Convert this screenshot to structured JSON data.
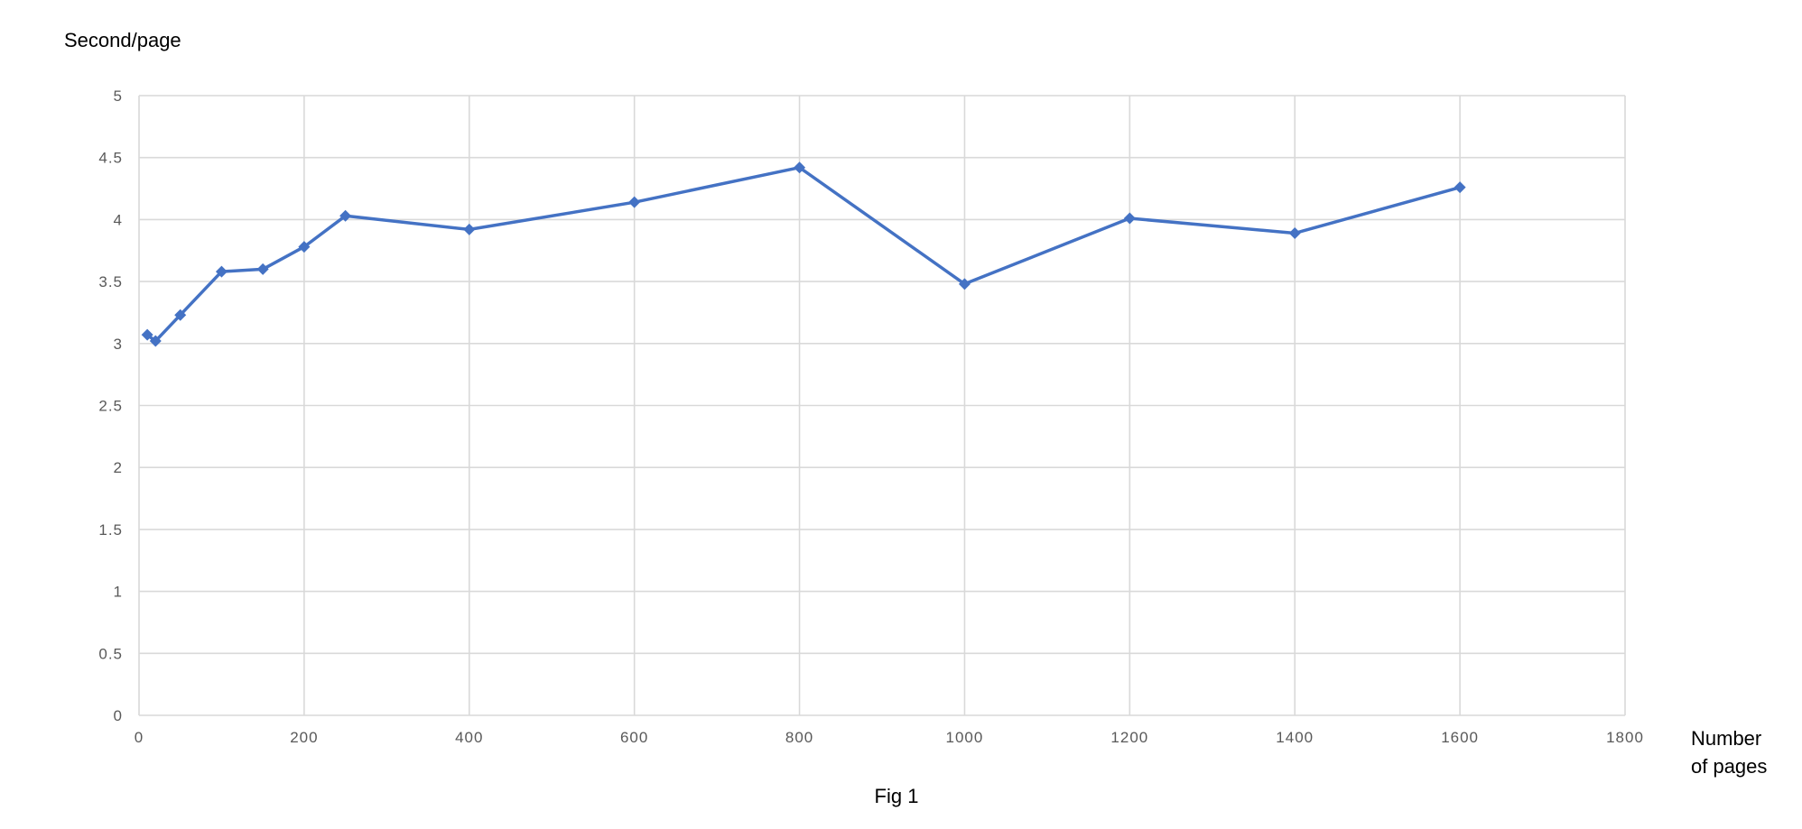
{
  "figure": {
    "caption": "Fig 1"
  },
  "colors": {
    "series": "#4472c4",
    "grid": "#d9d9d9",
    "tick_text": "#595959"
  },
  "chart_data": {
    "type": "line",
    "title": "",
    "ylabel": "Second/page",
    "xlabel_lines": [
      "Number",
      "of pages"
    ],
    "xlim": [
      0,
      1800
    ],
    "ylim": [
      0,
      5
    ],
    "x_ticks": [
      0,
      200,
      400,
      600,
      800,
      1000,
      1200,
      1400,
      1600,
      1800
    ],
    "y_ticks": [
      0,
      0.5,
      1,
      1.5,
      2,
      2.5,
      3,
      3.5,
      4,
      4.5,
      5
    ],
    "x_tick_labels": [
      "0",
      "200",
      "400",
      "600",
      "800",
      "1000",
      "1200",
      "1400",
      "1600",
      "1800"
    ],
    "y_tick_labels": [
      "0",
      "0.5",
      "1",
      "1.5",
      "2",
      "2.5",
      "3",
      "3.5",
      "4",
      "4.5",
      "5"
    ],
    "grid": true,
    "legend": "none",
    "marker": "diamond",
    "series": [
      {
        "x": [
          10,
          20,
          50,
          100,
          150,
          200,
          250,
          400,
          600,
          800,
          1000,
          1200,
          1400,
          1600
        ],
        "y": [
          3.07,
          3.02,
          3.23,
          3.58,
          3.6,
          3.78,
          4.03,
          3.92,
          4.14,
          4.42,
          3.48,
          4.01,
          3.89,
          4.26
        ]
      }
    ]
  }
}
